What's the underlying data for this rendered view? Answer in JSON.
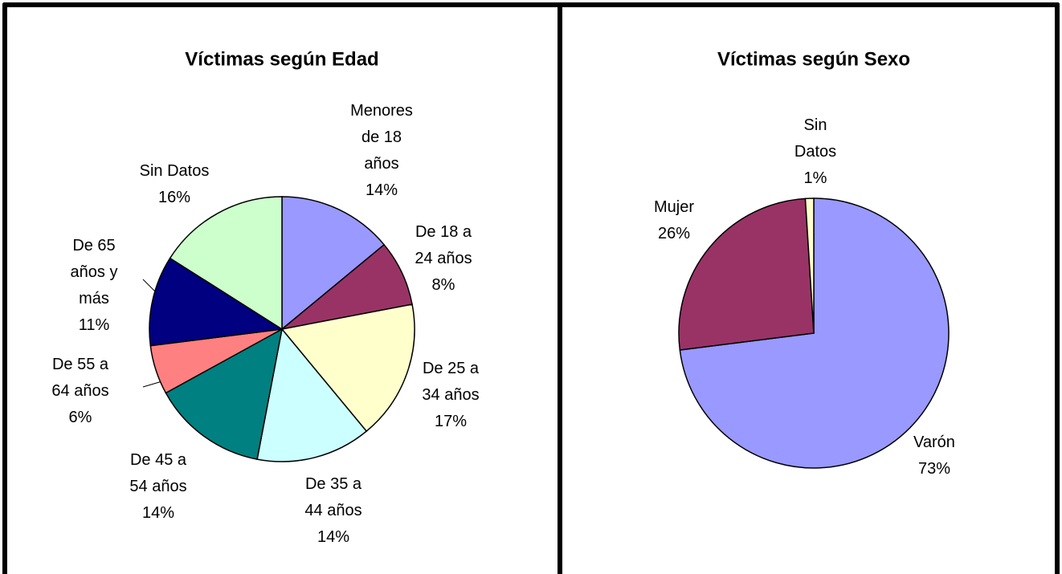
{
  "chart_data": [
    {
      "type": "pie",
      "title": "Víctimas según Edad",
      "categories": [
        "Menores de 18 años",
        "De 18 a 24 años",
        "De 25 a 34 años",
        "De 35 a 44 años",
        "De 45 a 54 años",
        "De 55 a 64 años",
        "De 65 años y más",
        "Sin Datos"
      ],
      "values": [
        14,
        8,
        17,
        14,
        14,
        6,
        11,
        16
      ],
      "value_labels": [
        "14%",
        "8%",
        "17%",
        "14%",
        "14%",
        "6%",
        "11%",
        "16%"
      ],
      "colors": [
        "#9999ff",
        "#993366",
        "#ffffcc",
        "#ccffff",
        "#008080",
        "#ff8080",
        "#000080",
        "#ccffcc"
      ]
    },
    {
      "type": "pie",
      "title": "Víctimas según Sexo",
      "categories": [
        "Varón",
        "Mujer",
        "Sin Datos"
      ],
      "values": [
        73,
        26,
        1
      ],
      "value_labels": [
        "73%",
        "26%",
        "1%"
      ],
      "colors": [
        "#9999ff",
        "#993366",
        "#ffffcc"
      ]
    }
  ]
}
